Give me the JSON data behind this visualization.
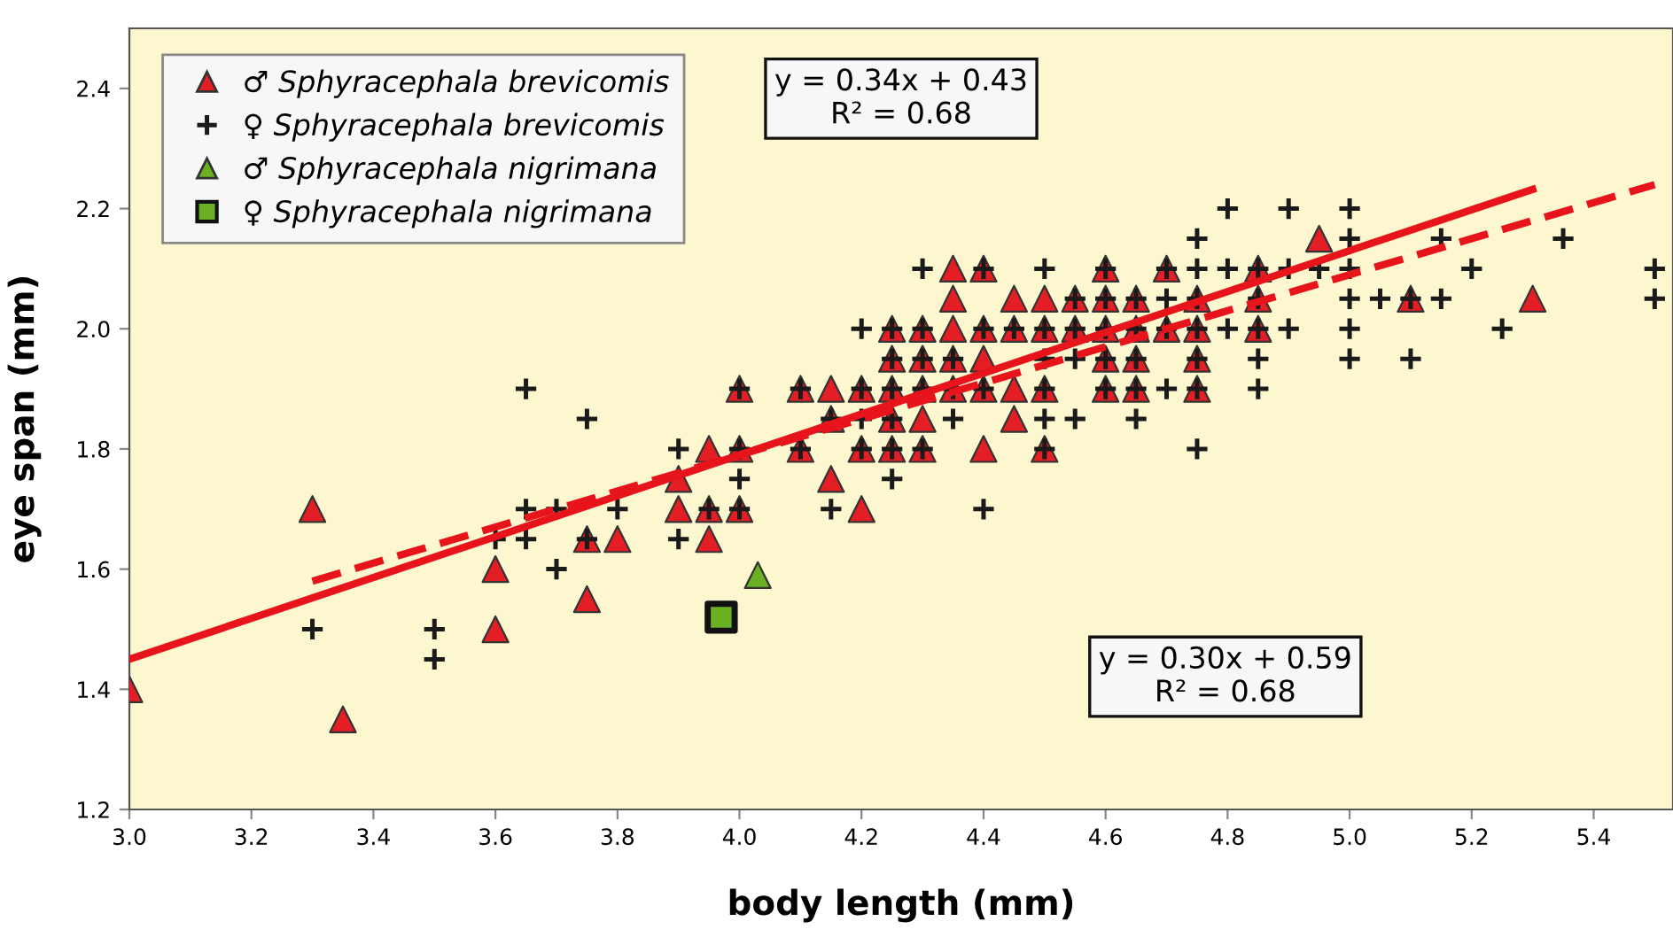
{
  "chart_data": {
    "type": "scatter",
    "xlabel": "body length (mm)",
    "ylabel": "eye span (mm)",
    "xlim": [
      3.0,
      5.53
    ],
    "ylim": [
      1.2,
      2.5
    ],
    "xticks": [
      {
        "value": 3.0,
        "label": "3.0"
      },
      3.2,
      3.4,
      3.6,
      3.8,
      {
        "value": 4.0,
        "label": "4.0"
      },
      4.2,
      4.4,
      4.6,
      4.8,
      {
        "value": 5.0,
        "label": "5.0"
      },
      5.2,
      5.4
    ],
    "yticks": [
      1.2,
      1.4,
      1.6,
      1.8,
      {
        "value": 2.0,
        "label": "2.0"
      },
      2.2,
      2.4
    ],
    "grid": false,
    "legend": "top left",
    "annotations": [
      "y = 0.34x + 0.43\nR² = 0.68",
      "y = 0.30x + 0.59\nR² = 0.68"
    ],
    "series": [
      {
        "name": "♂ Sphyracephala brevicomis",
        "color": "#e31e24",
        "marker": "triangle",
        "x": [
          3.3,
          3.9,
          3.95,
          4.0,
          3.75,
          3.8,
          3.95,
          3.6,
          3.75,
          3.6,
          3.0,
          3.35,
          4.35,
          4.4,
          4.6,
          4.35,
          4.45,
          4.5,
          4.55,
          4.6,
          4.65,
          4.25,
          4.3,
          4.35,
          4.4,
          4.45,
          4.5,
          4.55,
          4.6,
          4.65,
          4.25,
          4.3,
          4.35,
          4.4,
          4.6,
          4.65,
          4.0,
          4.1,
          4.15,
          4.2,
          4.25,
          4.3,
          4.35,
          4.4,
          4.45,
          4.5,
          4.6,
          4.65,
          4.15,
          4.25,
          4.3,
          4.45,
          3.95,
          4.0,
          4.1,
          4.2,
          4.25,
          4.3,
          4.4,
          4.5,
          3.9,
          4.15,
          4.2,
          4.95,
          4.7,
          4.85,
          4.75,
          4.85,
          5.1,
          5.3,
          4.7,
          4.75,
          4.85,
          4.75,
          4.75
        ],
        "values": [
          1.7,
          1.7,
          1.7,
          1.7,
          1.65,
          1.65,
          1.65,
          1.6,
          1.55,
          1.5,
          1.4,
          1.35,
          2.1,
          2.1,
          2.1,
          2.05,
          2.05,
          2.05,
          2.05,
          2.05,
          2.05,
          2.0,
          2.0,
          2.0,
          2.0,
          2.0,
          2.0,
          2.0,
          2.0,
          2.0,
          1.95,
          1.95,
          1.95,
          1.95,
          1.95,
          1.95,
          1.9,
          1.9,
          1.9,
          1.9,
          1.9,
          1.9,
          1.9,
          1.9,
          1.9,
          1.9,
          1.9,
          1.9,
          1.85,
          1.85,
          1.85,
          1.85,
          1.8,
          1.8,
          1.8,
          1.8,
          1.8,
          1.8,
          1.8,
          1.8,
          1.75,
          1.75,
          1.7,
          2.15,
          2.1,
          2.1,
          2.05,
          2.05,
          2.05,
          2.05,
          2.0,
          2.0,
          2.0,
          1.95,
          1.9
        ]
      },
      {
        "name": "♀ Sphyracephala brevicomis",
        "color": "#1a1a1a",
        "marker": "cross",
        "x": [
          3.3,
          3.5,
          3.5,
          3.65,
          3.7,
          3.8,
          3.6,
          3.65,
          3.75,
          3.7,
          3.65,
          3.75,
          4.3,
          4.4,
          4.5,
          4.6,
          4.55,
          4.6,
          4.65,
          4.2,
          4.25,
          4.3,
          4.4,
          4.45,
          4.5,
          4.55,
          4.6,
          4.65,
          4.25,
          4.3,
          4.35,
          4.5,
          4.55,
          4.6,
          4.65,
          4.0,
          4.1,
          4.2,
          4.25,
          4.3,
          4.35,
          4.4,
          4.5,
          4.6,
          4.65,
          4.15,
          4.2,
          4.25,
          4.35,
          4.5,
          4.55,
          4.65,
          3.9,
          4.0,
          4.1,
          4.2,
          4.25,
          4.3,
          4.5,
          4.0,
          4.25,
          3.95,
          4.0,
          4.15,
          4.4,
          3.9,
          4.8,
          4.9,
          5.0,
          4.75,
          5.0,
          5.15,
          5.35,
          4.7,
          4.75,
          4.8,
          4.85,
          4.9,
          4.95,
          5.0,
          5.2,
          5.5,
          4.7,
          4.75,
          4.85,
          5.0,
          5.05,
          5.1,
          5.15,
          5.5,
          4.7,
          4.75,
          4.8,
          4.85,
          4.9,
          5.0,
          5.25,
          4.75,
          4.85,
          5.0,
          5.1,
          4.7,
          4.75,
          4.85,
          4.75
        ],
        "values": [
          1.5,
          1.5,
          1.45,
          1.7,
          1.7,
          1.7,
          1.65,
          1.65,
          1.65,
          1.6,
          1.9,
          1.85,
          2.1,
          2.1,
          2.1,
          2.1,
          2.05,
          2.05,
          2.05,
          2.0,
          2.0,
          2.0,
          2.0,
          2.0,
          2.0,
          2.0,
          2.0,
          2.0,
          1.95,
          1.95,
          1.95,
          1.95,
          1.95,
          1.95,
          1.95,
          1.9,
          1.9,
          1.9,
          1.9,
          1.9,
          1.9,
          1.9,
          1.9,
          1.9,
          1.9,
          1.85,
          1.85,
          1.85,
          1.85,
          1.85,
          1.85,
          1.85,
          1.8,
          1.8,
          1.8,
          1.8,
          1.8,
          1.8,
          1.8,
          1.75,
          1.75,
          1.7,
          1.7,
          1.7,
          1.7,
          1.65,
          2.2,
          2.2,
          2.2,
          2.15,
          2.15,
          2.15,
          2.15,
          2.1,
          2.1,
          2.1,
          2.1,
          2.1,
          2.1,
          2.1,
          2.1,
          2.1,
          2.05,
          2.05,
          2.05,
          2.05,
          2.05,
          2.05,
          2.05,
          2.05,
          2.0,
          2.0,
          2.0,
          2.0,
          2.0,
          2.0,
          2.0,
          1.95,
          1.95,
          1.95,
          1.95,
          1.9,
          1.9,
          1.9,
          1.8
        ]
      },
      {
        "name": "♂ Sphyracephala nigrimana",
        "color": "#6ab023",
        "marker": "triangle",
        "x": [
          4.03
        ],
        "values": [
          1.59
        ]
      },
      {
        "name": "♀ Sphyracephala nigrimana",
        "color": "#6ab023",
        "marker": "square",
        "x": [
          3.97
        ],
        "values": [
          1.52
        ]
      },
      {
        "type": "line",
        "color": "#e8141c",
        "line_style": "solid",
        "x": [
          3.0,
          5.3
        ],
        "values": [
          1.45,
          2.232
        ]
      },
      {
        "type": "line",
        "color": "#e8141c",
        "line_style": "dashed",
        "x": [
          3.3,
          5.5
        ],
        "values": [
          1.58,
          2.24
        ]
      }
    ]
  }
}
